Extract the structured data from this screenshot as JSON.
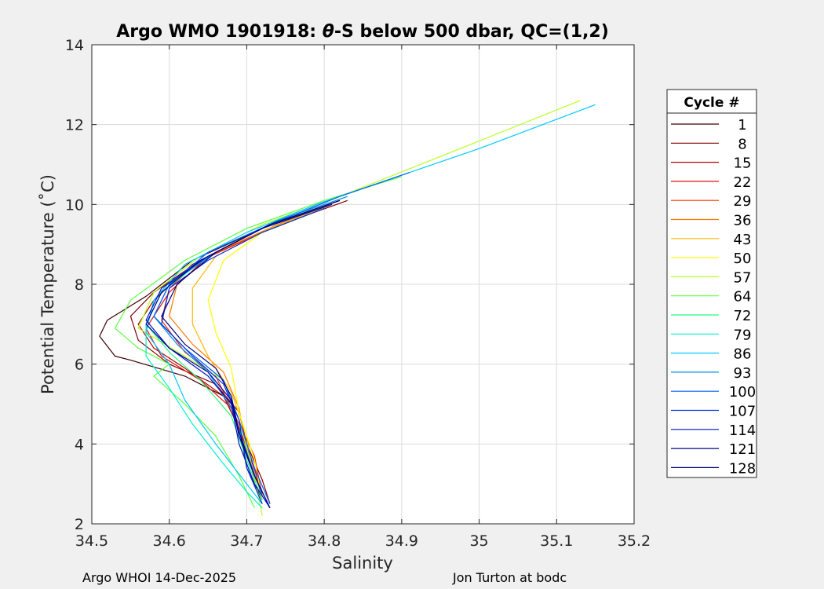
{
  "chart_data": {
    "type": "line",
    "title_prefix": "Argo WMO 1901918: ",
    "title_theta": "θ",
    "title_suffix": "-S below 500 dbar,  QC=(1,2)",
    "xlabel": "Salinity",
    "ylabel": "Potential Temperature (˚C)",
    "xlim": [
      34.5,
      35.2
    ],
    "ylim": [
      2,
      14
    ],
    "xticks": [
      34.5,
      34.6,
      34.7,
      34.8,
      34.9,
      35,
      35.1,
      35.2
    ],
    "xtick_labels": [
      "34.5",
      "34.6",
      "34.7",
      "34.8",
      "34.9",
      "35",
      "35.1",
      "35.2"
    ],
    "yticks": [
      2,
      4,
      6,
      8,
      10,
      12,
      14
    ],
    "ytick_labels": [
      "2",
      "4",
      "6",
      "8",
      "10",
      "12",
      "14"
    ],
    "grid": true,
    "legend": {
      "title": "Cycle #",
      "placement": "right",
      "entries": [
        {
          "label": "1",
          "color": "#3d0000"
        },
        {
          "label": "8",
          "color": "#800000"
        },
        {
          "label": "15",
          "color": "#b30000"
        },
        {
          "label": "22",
          "color": "#e01010"
        },
        {
          "label": "29",
          "color": "#ff3000"
        },
        {
          "label": "36",
          "color": "#ff7a00"
        },
        {
          "label": "43",
          "color": "#ffb800"
        },
        {
          "label": "50",
          "color": "#ffff00"
        },
        {
          "label": "57",
          "color": "#b8ff20"
        },
        {
          "label": "64",
          "color": "#5cff40"
        },
        {
          "label": "72",
          "color": "#20ff80"
        },
        {
          "label": "79",
          "color": "#00f0d0"
        },
        {
          "label": "86",
          "color": "#00c8ff"
        },
        {
          "label": "93",
          "color": "#0090e0"
        },
        {
          "label": "100",
          "color": "#0060ff"
        },
        {
          "label": "107",
          "color": "#0030e0"
        },
        {
          "label": "114",
          "color": "#0010c0"
        },
        {
          "label": "121",
          "color": "#000099"
        },
        {
          "label": "128",
          "color": "#000080"
        }
      ]
    },
    "series": [
      {
        "name": "1",
        "color": "#3d0000",
        "s": [
          34.82,
          34.72,
          34.63,
          34.57,
          34.52,
          34.51,
          34.53,
          34.55,
          34.62,
          34.67,
          34.69,
          34.7,
          34.72
        ],
        "t": [
          10.1,
          9.4,
          8.6,
          7.7,
          7.1,
          6.7,
          6.2,
          6.1,
          5.7,
          5.2,
          4.4,
          3.4,
          2.6
        ]
      },
      {
        "name": "8",
        "color": "#800000",
        "s": [
          34.83,
          34.73,
          34.64,
          34.58,
          34.55,
          34.56,
          34.6,
          34.66,
          34.69,
          34.7,
          34.72,
          34.73
        ],
        "t": [
          10.1,
          9.4,
          8.6,
          7.8,
          7.2,
          6.6,
          6.0,
          5.5,
          4.8,
          4.0,
          3.1,
          2.5
        ]
      },
      {
        "name": "15",
        "color": "#b30000",
        "s": [
          34.81,
          34.72,
          34.63,
          34.58,
          34.56,
          34.58,
          34.62,
          34.67,
          34.69,
          34.71,
          34.72
        ],
        "t": [
          10.0,
          9.3,
          8.5,
          7.6,
          7.0,
          6.4,
          5.9,
          5.2,
          4.4,
          3.4,
          2.6
        ]
      },
      {
        "name": "22",
        "color": "#e01010",
        "s": [
          34.82,
          34.73,
          34.65,
          34.6,
          34.57,
          34.59,
          34.64,
          34.68,
          34.7,
          34.72
        ],
        "t": [
          10.1,
          9.5,
          8.7,
          7.8,
          6.9,
          6.2,
          5.6,
          4.9,
          3.9,
          2.8
        ]
      },
      {
        "name": "29",
        "color": "#ff3000",
        "s": [
          34.8,
          34.72,
          34.64,
          34.6,
          34.59,
          34.62,
          34.66,
          34.68,
          34.71,
          34.72
        ],
        "t": [
          9.9,
          9.3,
          8.6,
          7.9,
          7.1,
          6.3,
          5.7,
          4.9,
          3.7,
          2.7
        ]
      },
      {
        "name": "36",
        "color": "#ff7a00",
        "s": [
          34.82,
          34.74,
          34.66,
          34.61,
          34.6,
          34.63,
          34.67,
          34.69,
          34.7,
          34.72
        ],
        "t": [
          10.1,
          9.5,
          8.8,
          8.0,
          7.2,
          6.5,
          5.8,
          4.9,
          3.8,
          2.7
        ]
      },
      {
        "name": "43",
        "color": "#ffb800",
        "s": [
          34.81,
          34.73,
          34.66,
          34.63,
          34.63,
          34.65,
          34.68,
          34.7,
          34.71
        ],
        "t": [
          10.0,
          9.4,
          8.7,
          7.9,
          7.0,
          6.2,
          5.3,
          4.2,
          3.0
        ]
      },
      {
        "name": "50",
        "color": "#ffff00",
        "s": [
          34.8,
          34.72,
          34.67,
          34.65,
          34.66,
          34.68,
          34.69,
          34.71,
          34.72
        ],
        "t": [
          9.9,
          9.3,
          8.6,
          7.6,
          6.8,
          5.9,
          4.8,
          3.6,
          2.6
        ]
      },
      {
        "name": "57",
        "color": "#b8ff20",
        "s": [
          35.13,
          34.95,
          34.82,
          34.72,
          34.64,
          34.58,
          34.56,
          34.62,
          34.67,
          34.69,
          34.71,
          34.72
        ],
        "t": [
          12.6,
          11.2,
          10.2,
          9.5,
          8.7,
          7.8,
          6.9,
          6.2,
          5.6,
          4.6,
          3.2,
          2.2
        ]
      },
      {
        "name": "64",
        "color": "#5cff40",
        "s": [
          34.9,
          34.8,
          34.7,
          34.62,
          34.55,
          34.53,
          34.56,
          34.6,
          34.58,
          34.62,
          34.66,
          34.69,
          34.71
        ],
        "t": [
          10.7,
          10.1,
          9.4,
          8.6,
          7.6,
          6.9,
          6.4,
          6.0,
          5.7,
          5.0,
          4.2,
          3.2,
          2.4
        ]
      },
      {
        "name": "72",
        "color": "#20ff80",
        "s": [
          34.82,
          34.73,
          34.65,
          34.59,
          34.57,
          34.6,
          34.64,
          34.68,
          34.7,
          34.72
        ],
        "t": [
          10.1,
          9.5,
          8.7,
          7.8,
          7.0,
          6.3,
          5.6,
          4.7,
          3.6,
          2.6
        ]
      },
      {
        "name": "79",
        "color": "#00f0d0",
        "s": [
          34.81,
          34.72,
          34.64,
          34.59,
          34.57,
          34.57,
          34.6,
          34.63,
          34.67,
          34.7,
          34.72
        ],
        "t": [
          10.0,
          9.4,
          8.6,
          7.8,
          7.0,
          6.2,
          5.4,
          4.5,
          3.5,
          2.8,
          2.4
        ]
      },
      {
        "name": "86",
        "color": "#00c8ff",
        "s": [
          35.15,
          35.0,
          34.88,
          34.79,
          34.7,
          34.62,
          34.58,
          34.57,
          34.6,
          34.62,
          34.66,
          34.7,
          34.72
        ],
        "t": [
          12.5,
          11.4,
          10.6,
          10.0,
          9.3,
          8.5,
          7.6,
          6.8,
          6.0,
          5.1,
          4.0,
          3.0,
          2.5
        ]
      },
      {
        "name": "93",
        "color": "#0090e0",
        "s": [
          34.83,
          34.74,
          34.66,
          34.6,
          34.58,
          34.61,
          34.65,
          34.68,
          34.7,
          34.72
        ],
        "t": [
          10.2,
          9.6,
          8.8,
          8.0,
          7.2,
          6.5,
          5.8,
          4.9,
          3.8,
          2.7
        ]
      },
      {
        "name": "100",
        "color": "#0060ff",
        "s": [
          34.91,
          34.82,
          34.73,
          34.65,
          34.6,
          34.58,
          34.62,
          34.67,
          34.69,
          34.71,
          34.73
        ],
        "t": [
          10.8,
          10.2,
          9.5,
          8.8,
          8.0,
          7.2,
          6.4,
          5.6,
          4.6,
          3.4,
          2.5
        ]
      },
      {
        "name": "107",
        "color": "#0030e0",
        "s": [
          34.8,
          34.72,
          34.65,
          34.6,
          34.59,
          34.63,
          34.67,
          34.69,
          34.7,
          34.72
        ],
        "t": [
          9.9,
          9.3,
          8.6,
          7.9,
          7.0,
          6.2,
          5.5,
          4.6,
          3.4,
          2.5
        ]
      },
      {
        "name": "114",
        "color": "#0010c0",
        "s": [
          34.82,
          34.73,
          34.65,
          34.59,
          34.57,
          34.6,
          34.65,
          34.68,
          34.69,
          34.71,
          34.73
        ],
        "t": [
          10.1,
          9.5,
          8.7,
          7.9,
          7.1,
          6.4,
          5.7,
          5.0,
          4.0,
          3.0,
          2.4
        ]
      },
      {
        "name": "121",
        "color": "#000099",
        "s": [
          34.81,
          34.72,
          34.64,
          34.59,
          34.57,
          34.6,
          34.65,
          34.68,
          34.69,
          34.71,
          34.73
        ],
        "t": [
          10.0,
          9.4,
          8.6,
          7.8,
          7.0,
          6.4,
          5.8,
          5.1,
          4.2,
          3.2,
          2.4
        ]
      },
      {
        "name": "128",
        "color": "#000080",
        "s": [
          34.82,
          34.73,
          34.66,
          34.61,
          34.59,
          34.62,
          34.66,
          34.68,
          34.69,
          34.71,
          34.73
        ],
        "t": [
          10.1,
          9.5,
          8.8,
          8.0,
          7.2,
          6.5,
          5.9,
          5.2,
          4.3,
          3.2,
          2.4
        ]
      }
    ]
  },
  "footer": {
    "left": "Argo WHOI 14-Dec-2025",
    "right": "Jon Turton at bodc"
  }
}
